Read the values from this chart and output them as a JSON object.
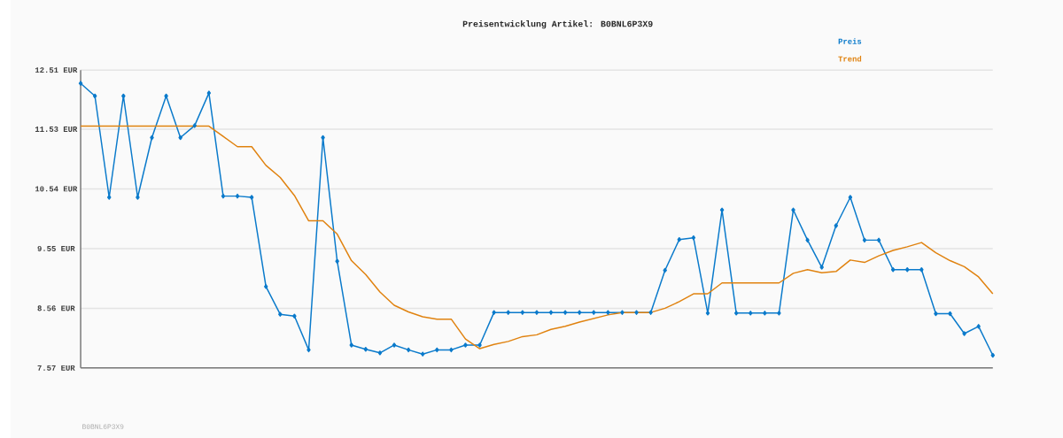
{
  "chart_data": {
    "type": "line",
    "title": "Preisentwicklung Artikel: B0BNL6P3X9",
    "categories": [
      null,
      null,
      null,
      null,
      null,
      null,
      null,
      null,
      null,
      null,
      null,
      null,
      null,
      null,
      null,
      null,
      null,
      null,
      null,
      null,
      null,
      null,
      null,
      null,
      null,
      null,
      null,
      null,
      null,
      null,
      null,
      null,
      null,
      null,
      null,
      null,
      null,
      null,
      null,
      null,
      null,
      null,
      null,
      null,
      null,
      null,
      null,
      null,
      null,
      null,
      null,
      null,
      null,
      null,
      null,
      null,
      null,
      null,
      null,
      null,
      null,
      null,
      null,
      null,
      null
    ],
    "series": [
      {
        "name": "Preis",
        "color": "#0a7acb",
        "marker": "diamond",
        "values": [
          12.29,
          12.08,
          10.4,
          12.08,
          10.4,
          11.39,
          12.08,
          11.39,
          11.59,
          12.13,
          10.42,
          10.42,
          10.4,
          8.92,
          8.46,
          8.43,
          7.87,
          11.39,
          9.34,
          7.95,
          7.88,
          7.82,
          7.95,
          7.87,
          7.8,
          7.87,
          7.87,
          7.95,
          7.95,
          8.49,
          8.49,
          8.49,
          8.49,
          8.49,
          8.49,
          8.49,
          8.49,
          8.49,
          8.49,
          8.49,
          8.49,
          9.19,
          9.7,
          9.73,
          8.48,
          10.19,
          8.48,
          8.48,
          8.48,
          8.48,
          10.19,
          9.69,
          9.24,
          9.93,
          10.4,
          9.69,
          9.69,
          9.2,
          9.2,
          9.2,
          8.47,
          8.47,
          8.14,
          8.26,
          7.78
        ]
      },
      {
        "name": "Trend",
        "color": "#e0820f",
        "marker": "none",
        "values": [
          11.58,
          11.58,
          11.58,
          11.58,
          11.58,
          11.58,
          11.58,
          11.58,
          11.58,
          11.58,
          11.41,
          11.24,
          11.24,
          10.93,
          10.73,
          10.43,
          10.01,
          10.01,
          9.79,
          9.35,
          9.12,
          8.83,
          8.61,
          8.5,
          8.42,
          8.38,
          8.38,
          8.05,
          7.89,
          7.96,
          8.01,
          8.09,
          8.12,
          8.21,
          8.26,
          8.33,
          8.39,
          8.45,
          8.49,
          8.49,
          8.49,
          8.56,
          8.67,
          8.8,
          8.8,
          8.98,
          8.98,
          8.98,
          8.98,
          8.98,
          9.14,
          9.2,
          9.15,
          9.17,
          9.36,
          9.32,
          9.43,
          9.52,
          9.58,
          9.65,
          9.48,
          9.35,
          9.25,
          9.08,
          8.8
        ]
      }
    ],
    "ylim": [
      7.57,
      12.51
    ],
    "yticks": [
      {
        "value": 7.57,
        "label": "7.57 EUR"
      },
      {
        "value": 8.56,
        "label": "8.56 EUR"
      },
      {
        "value": 9.55,
        "label": "9.55 EUR"
      },
      {
        "value": 10.54,
        "label": "10.54 EUR"
      },
      {
        "value": 11.53,
        "label": "11.53 EUR"
      },
      {
        "value": 12.51,
        "label": "12.51 EUR"
      }
    ],
    "grid": "y",
    "legend": "top right",
    "line_style": "solid",
    "annotations": [
      "B0BNL6P3X9"
    ]
  }
}
